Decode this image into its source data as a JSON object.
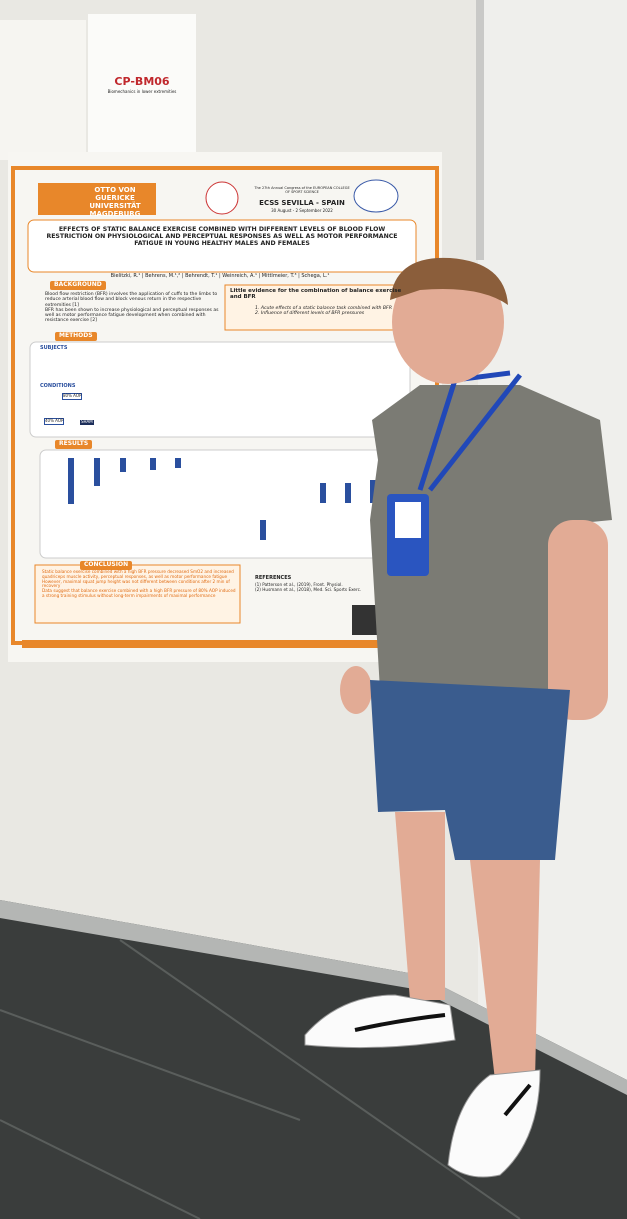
{
  "sign": {
    "code": "CP-BM06",
    "subtitle": "Biomechanics in lower extremities"
  },
  "poster": {
    "university": "OTTO VON GUERICKE UNIVERSITÄT MAGDEBURG",
    "congress": "The 27th Annual Congress of the EUROPEAN COLLEGE OF SPORT SCIENCE",
    "venue": "ECSS SEVILLA - SPAIN",
    "dates": "30 August - 2 September 2022",
    "title": "EFFECTS OF STATIC BALANCE EXERCISE COMBINED WITH DIFFERENT LEVELS OF BLOOD FLOW RESTRICTION ON PHYSIOLOGICAL AND PERCEPTUAL RESPONSES AS WELL AS MOTOR PERFORMANCE FATIGUE IN YOUNG HEALTHY MALES AND FEMALES",
    "authors": "Bielitzki, R.¹ | Behrens, M.¹,² | Behrendt, T.¹ | Weinreich, A.¹ | Mittlmeier, T.³ | Schega, L.¹",
    "background": {
      "heading": "BACKGROUND",
      "bullets": [
        "Blood flow restriction (BFR) involves the application of cuffs to the limbs to reduce arterial blood flow and block venous return in the respective extremities [1]",
        "BFR has been shown to increase physiological and perceptual responses as well as motor performance fatigue development when combined with resistance exercise [2]"
      ]
    },
    "aims": {
      "heading": "Little evidence for the combination of balance exercise and BFR",
      "items": [
        "1. Acute effects of a static balance task combined with BFR",
        "2. Influence of different levels of BFR pressures"
      ]
    },
    "methods": {
      "heading": "METHODS",
      "subjects": "SUBJECTS",
      "conditions": "CONDITIONS",
      "labels": [
        "80% AOP",
        "40% AOP",
        "SHAM"
      ]
    },
    "results": {
      "heading": "RESULTS"
    },
    "conclusion": {
      "heading": "CONCLUSION",
      "bullets": [
        "Static balance exercise combined with a high BFR pressure decreased SmO2 and increased quadriceps muscle activity, perceptual responses, as well as motor performance fatigue",
        "However, maximal squat jump height was not different between conditions after 2 min of recovery",
        "Data suggest that balance exercise combined with a high BFR pressure of 80% AOP induced a strong training stimulus without long-term impairments of maximal performance"
      ]
    },
    "references": {
      "heading": "REFERENCES",
      "items": [
        "(1) Patterson et al., (2019), Front. Physiol.",
        "(2) Husmann et al., (2018), Med. Sci. Sports Exerc."
      ]
    }
  }
}
